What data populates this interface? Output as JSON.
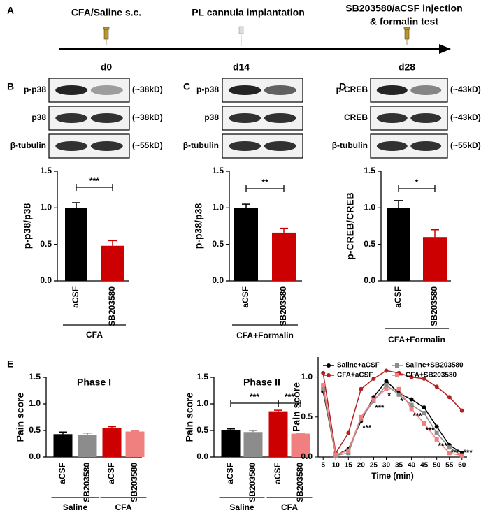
{
  "panel_labels": [
    "A",
    "B",
    "C",
    "D",
    "E"
  ],
  "timeline": {
    "events": [
      {
        "label": [
          "CFA/Saline s.c."
        ],
        "day": "d0"
      },
      {
        "label": [
          "PL cannula implantation"
        ],
        "day": "d14"
      },
      {
        "label": [
          "SB203580/aCSF injection",
          "& formalin test"
        ],
        "day": "d28"
      }
    ]
  },
  "blots": [
    {
      "rows": [
        {
          "protein": "p-p38",
          "size": "(~38kD)"
        },
        {
          "protein": "p38",
          "size": "(~38kD)"
        },
        {
          "protein": "β-tubulin",
          "size": "(~55kD)"
        }
      ]
    },
    {
      "rows": [
        {
          "protein": "p-p38"
        },
        {
          "protein": "p38"
        },
        {
          "protein": "β-tubulin"
        }
      ]
    },
    {
      "rows": [
        {
          "protein": "p-CREB",
          "size": "(~43kD)"
        },
        {
          "protein": "CREB",
          "size": "(~43kD)"
        },
        {
          "protein": "β-tubulin",
          "size": "(~55kD)"
        }
      ]
    }
  ],
  "chart_data": [
    {
      "type": "bar",
      "ylabel": "p-p38/p38",
      "categories": [
        "aCSF",
        "SB203580"
      ],
      "values": [
        1.0,
        0.48
      ],
      "errors": [
        0.07,
        0.07
      ],
      "colors": [
        "#000000",
        "#cc0000"
      ],
      "groups": [
        "CFA"
      ],
      "annotations": [
        "***"
      ],
      "ylim": [
        0,
        1.5
      ],
      "yticks": [
        {
          "value": 0,
          "label": "0.0"
        },
        {
          "value": 0.5,
          "label": "0.5"
        },
        {
          "value": 1,
          "label": "1.0"
        },
        {
          "value": 1.5,
          "label": "1.5"
        }
      ]
    },
    {
      "type": "bar",
      "ylabel": "p-p38/p38",
      "categories": [
        "aCSF",
        "SB203580"
      ],
      "values": [
        1.0,
        0.66
      ],
      "errors": [
        0.05,
        0.06
      ],
      "colors": [
        "#000000",
        "#cc0000"
      ],
      "groups": [
        "CFA+Formalin"
      ],
      "annotations": [
        "**"
      ],
      "ylim": [
        0,
        1.5
      ],
      "yticks": [
        {
          "value": 0,
          "label": "0.0"
        },
        {
          "value": 0.5,
          "label": "0.5"
        },
        {
          "value": 1,
          "label": "1.0"
        },
        {
          "value": 1.5,
          "label": "1.5"
        }
      ]
    },
    {
      "type": "bar",
      "ylabel": "p-CREB/CREB",
      "categories": [
        "aCSF",
        "SB203580"
      ],
      "values": [
        1.0,
        0.6
      ],
      "errors": [
        0.1,
        0.1
      ],
      "colors": [
        "#000000",
        "#cc0000"
      ],
      "groups": [
        "CFA+Formalin"
      ],
      "annotations": [
        "*"
      ],
      "ylim": [
        0,
        1.5
      ],
      "yticks": [
        {
          "value": 0,
          "label": "0.0"
        },
        {
          "value": 0.5,
          "label": "0.5"
        },
        {
          "value": 1,
          "label": "1.0"
        },
        {
          "value": 1.5,
          "label": "1.5"
        }
      ]
    },
    {
      "type": "bar",
      "title": "Phase I",
      "ylabel": "Pain score",
      "categories": [
        "aCSF",
        "SB203580",
        "aCSF",
        "SB203580"
      ],
      "values": [
        0.43,
        0.42,
        0.55,
        0.48
      ],
      "errors": [
        0.04,
        0.03,
        0.02,
        0.01
      ],
      "colors": [
        "#000000",
        "#8c8c8c",
        "#cc0000",
        "#f08080"
      ],
      "groups": [
        "Saline",
        "CFA"
      ],
      "annotations": [],
      "ylim": [
        0,
        1.5
      ],
      "yticks": [
        {
          "value": 0,
          "label": "0.0"
        },
        {
          "value": 0.5,
          "label": "0.5"
        },
        {
          "value": 1,
          "label": "1.0"
        },
        {
          "value": 1.5,
          "label": "1.5"
        }
      ]
    },
    {
      "type": "bar",
      "title": "Phase II",
      "ylabel": "Pain score",
      "categories": [
        "aCSF",
        "SB203580",
        "aCSF",
        "SB203580"
      ],
      "values": [
        0.51,
        0.47,
        0.86,
        0.44
      ],
      "errors": [
        0.02,
        0.03,
        0.02,
        0.01
      ],
      "colors": [
        "#000000",
        "#8c8c8c",
        "#cc0000",
        "#f08080"
      ],
      "groups": [
        "Saline",
        "CFA"
      ],
      "annotations": [
        "***",
        "***"
      ],
      "ylim": [
        0,
        1.5
      ],
      "yticks": [
        {
          "value": 0,
          "label": "0.0"
        },
        {
          "value": 0.5,
          "label": "0.5"
        },
        {
          "value": 1,
          "label": "1.0"
        },
        {
          "value": 1.5,
          "label": "1.5"
        }
      ]
    },
    {
      "type": "line",
      "xlabel": "Time (min)",
      "ylabel": "Pain score",
      "x": [
        5,
        10,
        15,
        20,
        25,
        30,
        35,
        40,
        45,
        50,
        55,
        60
      ],
      "series": [
        {
          "name": "Saline+aCSF",
          "color": "#000000",
          "marker": "circle",
          "values": [
            0.82,
            0.02,
            0.1,
            0.45,
            0.75,
            0.95,
            0.8,
            0.72,
            0.62,
            0.38,
            0.15,
            0.05
          ]
        },
        {
          "name": "Saline+SB203580",
          "color": "#8c8c8c",
          "marker": "square",
          "values": [
            0.85,
            0.02,
            0.05,
            0.48,
            0.7,
            0.9,
            0.78,
            0.65,
            0.55,
            0.3,
            0.12,
            0.02
          ]
        },
        {
          "name": "CFA+aCSF",
          "color": "#b22222",
          "marker": "circle",
          "values": [
            1.05,
            0.05,
            0.3,
            0.85,
            0.98,
            1.08,
            1.05,
            1.0,
            0.98,
            0.88,
            0.75,
            0.58
          ]
        },
        {
          "name": "CFA+SB203580",
          "color": "#f08080",
          "marker": "square",
          "values": [
            0.9,
            0.03,
            0.08,
            0.5,
            0.72,
            0.85,
            0.85,
            0.6,
            0.42,
            0.22,
            0.05,
            0.02
          ]
        }
      ],
      "annotations": [
        {
          "x": 20,
          "label": "***"
        },
        {
          "x": 25,
          "label": "***"
        },
        {
          "x": 30,
          "label": "*"
        },
        {
          "x": 35,
          "label": "*"
        },
        {
          "x": 40,
          "label": "***"
        },
        {
          "x": 45,
          "label": "***"
        },
        {
          "x": 50,
          "label": "***"
        },
        {
          "x": 55,
          "label": "***"
        },
        {
          "x": 60,
          "label": "***"
        }
      ],
      "xlim": [
        3,
        62
      ],
      "xticks": [
        5,
        10,
        15,
        20,
        25,
        30,
        35,
        40,
        45,
        50,
        55,
        60
      ],
      "ylim": [
        0,
        1.25
      ],
      "yticks": [
        {
          "value": 0,
          "label": "0.0"
        },
        {
          "value": 0.5,
          "label": "0.5"
        },
        {
          "value": 1,
          "label": "1.0"
        }
      ]
    }
  ]
}
